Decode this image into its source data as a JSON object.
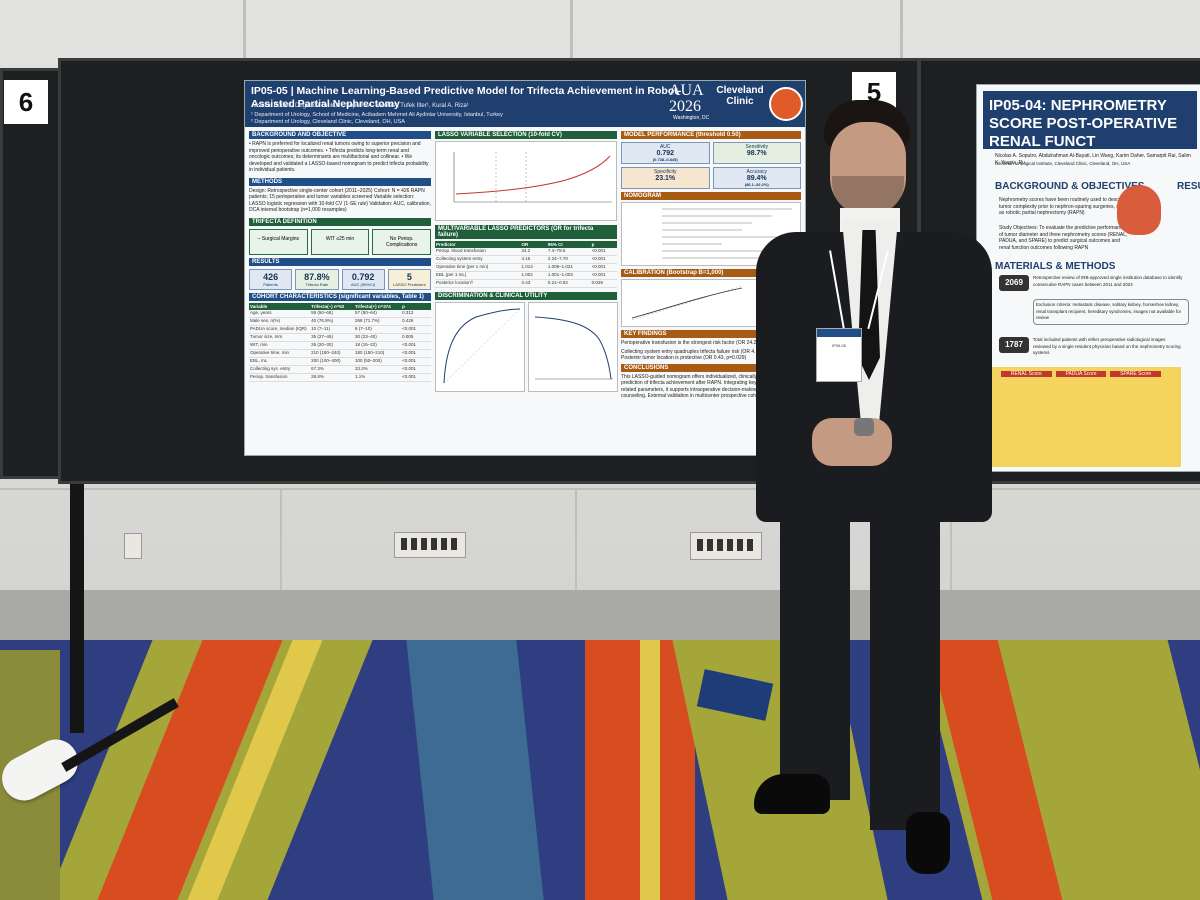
{
  "board_left_number": "6",
  "board_center_number": "5",
  "poster_main": {
    "code_title": "IP05-05 | Machine Learning-Based Predictive Model for Trifecta Achievement in Robot-Assisted Partial Nephrectomy",
    "authors": "Aksakal Boran¹, Doganca Tunkut ¹, Soputro A. Nicolas², Tufek Ilter¹, Kural A. Riza¹",
    "affiliation_1": "¹ Department of Urology, School of Medicine, Acibadem Mehmet Ali Aydinlar University, Istanbul, Turkey",
    "affiliation_2": "² Department of Urology, Cleveland Clinic, Cleveland, OH, USA",
    "conference": "AUA 2026",
    "conference_city": "Washington, DC",
    "clinic": "Cleveland Clinic",
    "sections": {
      "background": "BACKGROUND AND OBJECTIVE",
      "background_text": "• RAPN is preferred for localized renal tumors owing to superior precision and improved perioperative outcomes. • Trifecta predicts long-term renal and oncologic outcomes; its determinants are multifactorial and collinear. • We developed and validated a LASSO-based nomogram to predict trifecta probability in individual patients.",
      "methods": "METHODS",
      "methods_text": "Design: Retrospective single-center cohort (2011–2025) Cohort: N = 426 RAPN patients; 15 perioperative and tumor variables screened Variable selection: LASSO logistic regression with 10-fold CV (1-SE rule) Validation: AUC, calibration, DCA internal bootstrap (n=1,000 resamples)",
      "trifecta": "TRIFECTA DEFINITION",
      "trifecta_items": [
        "– Surgical Margins",
        "WIT ≤25 min",
        "No Periop. Complications"
      ],
      "results": "RESULTS",
      "results_kpis": [
        {
          "value": "426",
          "label": "Patients"
        },
        {
          "value": "87.8%",
          "label": "Trifecta Rate"
        },
        {
          "value": "0.792",
          "label": "AUC (95%CI)"
        },
        {
          "value": "5",
          "label": "LASSO Predictors"
        }
      ],
      "cohort": "COHORT CHARACTERISTICS (significant variables, Table 1)",
      "lasso": "LASSO VARIABLE SELECTION (10-fold CV)",
      "multivariable": "MULTIVARIABLE LASSO PREDICTORS (OR for trifecta failure)",
      "discrimination": "DISCRIMINATION & CLINICAL UTILITY",
      "performance": "MODEL PERFORMANCE (threshold 0.50)",
      "perf_kpis": [
        {
          "label": "AUC",
          "value": "0.792",
          "sub": "(0.738–0.845)"
        },
        {
          "label": "Sensitivity",
          "value": "98.7%",
          "sub": ""
        },
        {
          "label": "Specificity",
          "value": "23.1%",
          "sub": ""
        },
        {
          "label": "Accuracy",
          "value": "89.4%",
          "sub": "(86.1–92.2%)"
        }
      ],
      "nomogram": "NOMOGRAM",
      "calibration": "CALIBRATION (Bootstrap B=1,000)",
      "key_findings": "KEY FINDINGS",
      "key_findings_items": [
        "Perioperative transfusion is the strongest risk factor (OR 24.2)",
        "Collecting system entry quadruples trifecta failure risk (OR 4.15)",
        "Posterior tumor location is protective (OR 0.43, p=0.029)"
      ],
      "conclusions": "CONCLUSIONS",
      "conclusions_text": "This LASSO-guided nomogram offers individualized, clinically interpretable prediction of trifecta achievement after RAPN. Integrating key surgical and tumor-related parameters, it supports intraoperative decision-making and perioperative counseling. External validation in multicenter prospective cohorts is warranted."
    },
    "predictor_table": {
      "headers": [
        "Predictor",
        "OR",
        "95% CI",
        "p"
      ],
      "rows": [
        [
          "Periop. blood transfusion",
          "24.2",
          "7.4–79.5",
          "<0.001"
        ],
        [
          "Collecting system entry",
          "4.15",
          "2.24–7.70",
          "<0.001"
        ],
        [
          "Operative time (per 1 min)",
          "1.014",
          "1.008–1.021",
          "<0.001"
        ],
        [
          "EBL (per 1 mL)",
          "1.002",
          "1.001–1.003",
          "<0.001"
        ],
        [
          "Posterior location†",
          "0.43",
          "0.21–0.92",
          "0.029"
        ]
      ]
    },
    "cohort_table": {
      "headers": [
        "Variable",
        "Trifecta(–) n=52",
        "Trifecta(+) n=374",
        "p"
      ],
      "rows": [
        [
          "Age, years",
          "59 (50–68)",
          "57 (50–64)",
          "0.312"
        ],
        [
          "Male sex, n(%)",
          "40 (76.9%)",
          "268 (71.7%)",
          "0.426"
        ],
        [
          "PADUA score, median (IQR)",
          "10 (7–11)",
          "8 (7–10)",
          "<0.001"
        ],
        [
          "Tumor size, mm",
          "35 (27–45)",
          "30 (23–40)",
          "0.005"
        ],
        [
          "WIT, min",
          "26 (20–30)",
          "18 (15–22)",
          "<0.001"
        ],
        [
          "Operative time, min",
          "210 (180–240)",
          "180 (150–210)",
          "<0.001"
        ],
        [
          "EBL, mL",
          "200 (100–400)",
          "100 (50–200)",
          "<0.001"
        ],
        [
          "Collecting sys. entry",
          "67.3%",
          "33.2%",
          "<0.001"
        ],
        [
          "Periop. transfusion",
          "28.8%",
          "1.1%",
          "<0.001"
        ]
      ]
    }
  },
  "poster_right": {
    "title": "IP05-04: NEPHROMETRY SCORE POST-OPERATIVE RENAL FUNCT",
    "authors": "Nicolas A. Soputro, Abdulrahman Al-Bayati, Lin Wang, Karim Daher, Samarpit Rai, Salim K. Younis, Ru",
    "affiliation": "Glickman Urological Institute, Cleveland Clinic, Cleveland, OH, USA",
    "background": "BACKGROUND & OBJECTIVES",
    "results": "RESULT",
    "materials": "MATERIALS & METHODS",
    "n1": "2069",
    "n2": "1787",
    "bullet_1": "Nephrometry scores have been routinely used to describe tumor complexity prior to nephron-sparing surgeries, such as robotic partial nephrectomy (RAPN)",
    "bullet_2": "Study Objectives: To evaluate the predictive performance of tumor diameter and three nephrometry scores (RENAL, PADUA, and SPARE) to predict surgical outcomes and renal function outcomes following RAPN",
    "step_1": "Retrospective review of IRB-approved single institution database to identify consecutive RAPN cases between 2011 and 2024",
    "step_2": "Exclusion criteria: metastatic disease, solitary kidney, horseshoe kidney, renal transplant recipient, hereditary syndromes, images not available for review",
    "step_3": "Total included patients with either preoperative radiological images reviewed by a single resident physician based on the nephrometry scoring systems",
    "scores": [
      "RENAL Score",
      "PADUA Score",
      "SPARE Score"
    ]
  },
  "badge_text": "IP05-05"
}
